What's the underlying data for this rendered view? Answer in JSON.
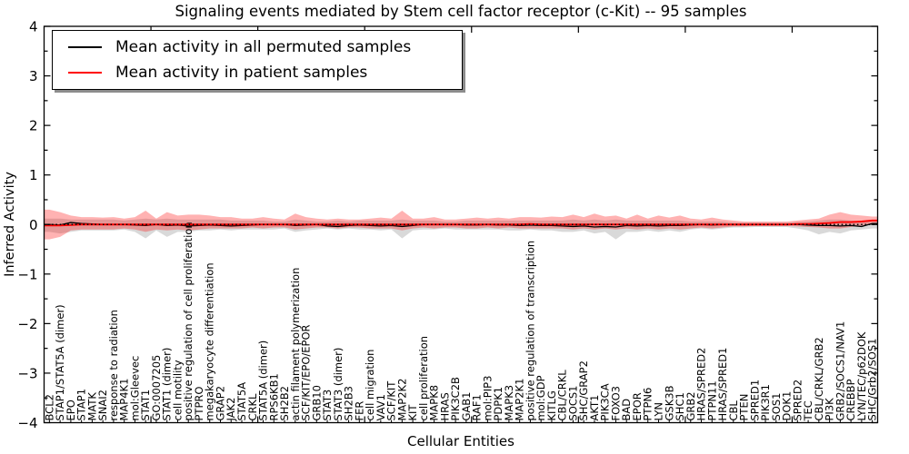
{
  "chart_data": {
    "type": "line",
    "title": "Signaling events mediated by Stem cell factor receptor (c-Kit) -- 95 samples",
    "xlabel": "Cellular Entities",
    "ylabel": "Inferred Activity",
    "ylim": [
      -4,
      4
    ],
    "grid": false,
    "legend_position": "upper left",
    "categories": [
      "BCL2",
      "STAP1/STAT5A (dimer)",
      "EPO",
      "STAP1",
      "MATK",
      "SNAI2",
      "response to radiation",
      "MAP4K1",
      "mol:Gleevec",
      "STAT1",
      "GO:0007205",
      "STAT1 (dimer)",
      "cell motility",
      "positive regulation of cell proliferation",
      "PTPRO",
      "megakaryocyte differentiation",
      "GRAP2",
      "JAK2",
      "STAT5A",
      "CRKL",
      "STAT5A (dimer)",
      "RPS6KB1",
      "SH2B2",
      "actin filament polymerization",
      "SCF/KIT/EPO/EPOR",
      "GRB10",
      "STAT3",
      "STAT3 (dimer)",
      "SH2B3",
      "FER",
      "cell migration",
      "VAV1",
      "SCF/KIT",
      "MAP2K2",
      "KIT",
      "cell proliferation",
      "MAPK8",
      "HRAS",
      "PIK3C2B",
      "GAB1",
      "RAF1",
      "mol:PIP3",
      "PDPK1",
      "MAPK3",
      "MAP2K1",
      "positive regulation of transcription",
      "mol:GDP",
      "KITLG",
      "CBL/CRKL",
      "SOCS1",
      "SHC/GRAP2",
      "AKT1",
      "PIK3CA",
      "FOXO3",
      "BAD",
      "EPOR",
      "PTPN6",
      "LYN",
      "GSK3B",
      "SHC1",
      "GRB2",
      "HRAS/SPRED2",
      "PTPN11",
      "HRAS/SPRED1",
      "CBL",
      "PTEN",
      "SPRED1",
      "PIK3R1",
      "SOS1",
      "DOK1",
      "SPRED2",
      "TEC",
      "CBL/CRKL/GRB2",
      "PI3K",
      "GRB2/SOCS1/NAV1",
      "CREBBP",
      "LYN/TEC/p62DOK",
      "SHC/Grb2/SOS1"
    ],
    "series": [
      {
        "name": "Mean activity in all permuted samples",
        "color": "#000000",
        "width": 1.3,
        "values": [
          0.0,
          -0.01,
          0.04,
          0.02,
          0.01,
          0.0,
          0.0,
          0.0,
          -0.01,
          -0.02,
          0.0,
          -0.02,
          -0.01,
          -0.03,
          -0.02,
          -0.01,
          -0.02,
          -0.03,
          -0.02,
          -0.01,
          0.0,
          0.0,
          0.0,
          -0.02,
          -0.01,
          0.0,
          -0.03,
          -0.04,
          -0.02,
          -0.01,
          -0.02,
          -0.03,
          -0.02,
          -0.04,
          -0.02,
          0.0,
          0.0,
          0.0,
          0.0,
          -0.01,
          -0.01,
          0.0,
          -0.01,
          -0.01,
          -0.02,
          -0.01,
          -0.02,
          -0.02,
          -0.03,
          -0.04,
          -0.03,
          -0.05,
          -0.04,
          -0.05,
          -0.02,
          -0.03,
          -0.02,
          -0.03,
          -0.02,
          -0.02,
          -0.01,
          0.0,
          -0.01,
          0.0,
          0.0,
          0.0,
          0.0,
          0.0,
          0.0,
          0.0,
          0.0,
          -0.01,
          -0.02,
          -0.02,
          -0.03,
          -0.02,
          -0.04,
          0.02
        ]
      },
      {
        "name": "Mean activity in patient samples",
        "color": "#ff0000",
        "width": 1.9,
        "values": [
          -0.02,
          -0.02,
          -0.01,
          0.0,
          0.0,
          0.0,
          0.0,
          0.0,
          0.0,
          0.0,
          0.0,
          0.0,
          0.0,
          0.0,
          0.0,
          0.0,
          0.0,
          0.0,
          0.0,
          0.0,
          0.0,
          0.0,
          0.0,
          0.0,
          0.0,
          0.0,
          0.0,
          0.0,
          0.0,
          0.0,
          0.0,
          0.0,
          0.0,
          0.0,
          0.0,
          0.0,
          0.0,
          0.0,
          0.0,
          0.0,
          0.0,
          0.0,
          0.0,
          0.0,
          0.0,
          0.01,
          0.0,
          0.0,
          0.0,
          0.0,
          0.0,
          0.0,
          0.0,
          0.0,
          0.0,
          0.0,
          0.0,
          0.0,
          0.0,
          0.0,
          0.0,
          0.0,
          0.0,
          0.0,
          0.0,
          0.0,
          0.0,
          0.0,
          0.0,
          0.0,
          0.01,
          0.01,
          0.02,
          0.03,
          0.05,
          0.05,
          0.06,
          0.08
        ]
      }
    ],
    "bands": [
      {
        "name": "permuted sample range",
        "color": "#888888",
        "opacity": 0.32,
        "low": [
          -0.15,
          -0.18,
          -0.15,
          -0.12,
          -0.12,
          -0.12,
          -0.12,
          -0.1,
          -0.15,
          -0.28,
          -0.12,
          -0.25,
          -0.15,
          -0.15,
          -0.12,
          -0.12,
          -0.1,
          -0.12,
          -0.1,
          -0.1,
          -0.1,
          -0.1,
          -0.08,
          -0.15,
          -0.12,
          -0.1,
          -0.08,
          -0.1,
          -0.08,
          -0.1,
          -0.1,
          -0.12,
          -0.1,
          -0.28,
          -0.12,
          -0.1,
          -0.1,
          -0.08,
          -0.1,
          -0.1,
          -0.1,
          -0.1,
          -0.1,
          -0.12,
          -0.12,
          -0.1,
          -0.12,
          -0.12,
          -0.15,
          -0.15,
          -0.12,
          -0.18,
          -0.15,
          -0.3,
          -0.15,
          -0.15,
          -0.12,
          -0.15,
          -0.12,
          -0.15,
          -0.1,
          -0.08,
          -0.1,
          -0.08,
          -0.06,
          -0.06,
          -0.05,
          -0.05,
          -0.05,
          -0.05,
          -0.08,
          -0.12,
          -0.2,
          -0.15,
          -0.18,
          -0.12,
          -0.1,
          -0.08
        ],
        "high": [
          0.12,
          0.12,
          0.1,
          0.1,
          0.1,
          0.1,
          0.1,
          0.08,
          0.1,
          0.12,
          0.1,
          0.12,
          0.1,
          0.1,
          0.1,
          0.1,
          0.1,
          0.08,
          0.08,
          0.08,
          0.08,
          0.06,
          0.06,
          0.1,
          0.08,
          0.06,
          0.06,
          0.08,
          0.06,
          0.08,
          0.08,
          0.08,
          0.08,
          0.1,
          0.08,
          0.08,
          0.08,
          0.06,
          0.06,
          0.08,
          0.08,
          0.08,
          0.08,
          0.08,
          0.08,
          0.08,
          0.08,
          0.08,
          0.08,
          0.1,
          0.08,
          0.1,
          0.08,
          0.1,
          0.08,
          0.08,
          0.08,
          0.08,
          0.08,
          0.08,
          0.06,
          0.06,
          0.06,
          0.06,
          0.04,
          0.04,
          0.04,
          0.04,
          0.04,
          0.04,
          0.05,
          0.06,
          0.08,
          0.1,
          0.1,
          0.08,
          0.06,
          0.05
        ]
      },
      {
        "name": "patient sample range",
        "color": "#ff0000",
        "opacity": 0.3,
        "low": [
          -0.3,
          -0.25,
          -0.12,
          -0.1,
          -0.1,
          -0.1,
          -0.1,
          -0.08,
          -0.1,
          -0.15,
          -0.1,
          -0.12,
          -0.1,
          -0.12,
          -0.1,
          -0.08,
          -0.08,
          -0.08,
          -0.08,
          -0.06,
          -0.08,
          -0.06,
          -0.06,
          -0.1,
          -0.08,
          -0.06,
          -0.06,
          -0.08,
          -0.06,
          -0.06,
          -0.08,
          -0.08,
          -0.08,
          -0.12,
          -0.08,
          -0.06,
          -0.08,
          -0.06,
          -0.06,
          -0.08,
          -0.08,
          -0.06,
          -0.08,
          -0.06,
          -0.08,
          -0.08,
          -0.08,
          -0.08,
          -0.08,
          -0.1,
          -0.08,
          -0.1,
          -0.08,
          -0.1,
          -0.08,
          -0.1,
          -0.08,
          -0.1,
          -0.08,
          -0.1,
          -0.08,
          -0.06,
          -0.08,
          -0.06,
          -0.04,
          -0.04,
          -0.03,
          -0.03,
          -0.03,
          -0.03,
          -0.04,
          -0.05,
          -0.06,
          -0.08,
          -0.08,
          -0.05,
          -0.02,
          0.0
        ],
        "high": [
          0.3,
          0.25,
          0.18,
          0.15,
          0.15,
          0.14,
          0.15,
          0.12,
          0.15,
          0.28,
          0.12,
          0.25,
          0.18,
          0.2,
          0.2,
          0.18,
          0.15,
          0.15,
          0.12,
          0.12,
          0.15,
          0.12,
          0.1,
          0.22,
          0.15,
          0.12,
          0.1,
          0.12,
          0.1,
          0.1,
          0.12,
          0.14,
          0.12,
          0.28,
          0.12,
          0.12,
          0.15,
          0.1,
          0.1,
          0.12,
          0.14,
          0.12,
          0.14,
          0.12,
          0.15,
          0.15,
          0.14,
          0.16,
          0.15,
          0.2,
          0.15,
          0.22,
          0.16,
          0.18,
          0.12,
          0.2,
          0.12,
          0.18,
          0.14,
          0.18,
          0.12,
          0.1,
          0.14,
          0.1,
          0.08,
          0.06,
          0.06,
          0.06,
          0.06,
          0.06,
          0.08,
          0.1,
          0.12,
          0.2,
          0.25,
          0.2,
          0.18,
          0.16
        ]
      }
    ],
    "reference_line": {
      "value": 0,
      "style": "dotted",
      "color": "#000000"
    }
  },
  "axes": {
    "ylabel": "Inferred Activity",
    "xlabel": "Cellular Entities",
    "ytick_values": [
      4,
      3,
      2,
      1,
      0,
      -1,
      -2,
      -3,
      -4
    ],
    "ytick_labels": [
      "4",
      "3",
      "2",
      "1",
      "0",
      "−1",
      "−2",
      "−3",
      "−4"
    ],
    "y_minor_step": 0.5,
    "x_major_every": 10
  },
  "legend": {
    "items": [
      {
        "label": "Mean activity in all permuted samples",
        "color": "#000000"
      },
      {
        "label": "Mean activity in patient samples",
        "color": "#ff0000"
      }
    ]
  }
}
